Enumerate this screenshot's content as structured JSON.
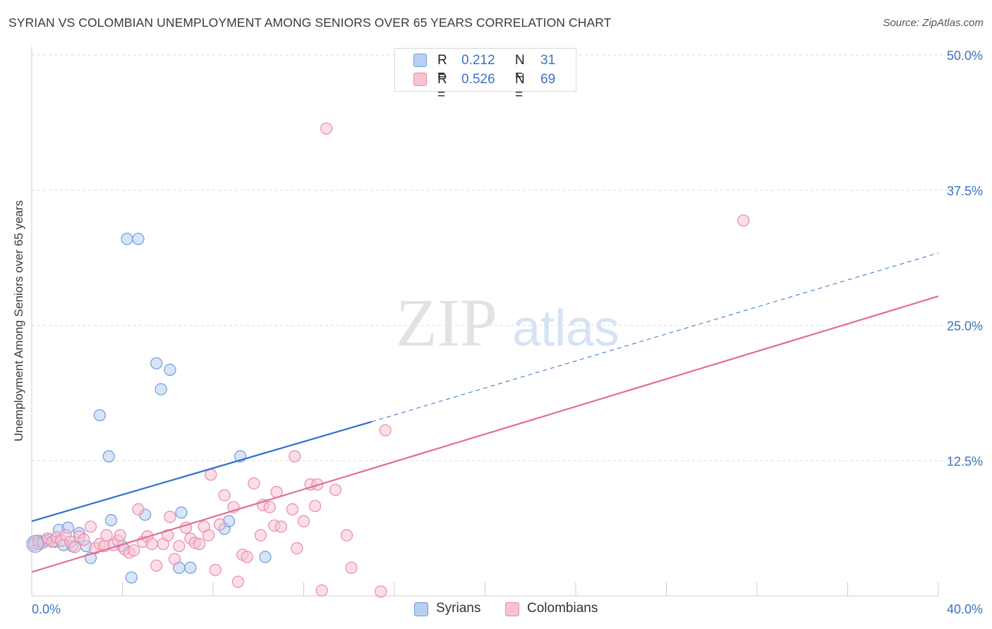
{
  "header": {
    "title": "SYRIAN VS COLOMBIAN UNEMPLOYMENT AMONG SENIORS OVER 65 YEARS CORRELATION CHART",
    "source": "Source: ZipAtlas.com"
  },
  "watermark": {
    "zip": "ZIP",
    "atlas": "atlas"
  },
  "legend_top": {
    "rows": [
      {
        "r_label": "R =",
        "r_value": "0.212",
        "n_label": "N =",
        "n_value": "31"
      },
      {
        "r_label": "R =",
        "r_value": "0.526",
        "n_label": "N =",
        "n_value": "69"
      }
    ]
  },
  "legend_bottom": {
    "syrians": "Syrians",
    "colombians": "Colombians"
  },
  "colors": {
    "syrian_fill": "#b8d0f0",
    "syrian_stroke": "#6d9be0",
    "syrian_line": "#2f6fce",
    "colombian_fill": "#f8c3d3",
    "colombian_stroke": "#ea8aaa",
    "colombian_line": "#e26c98",
    "grid": "#dddddd",
    "tick_text": "#3d72c4"
  },
  "chart_data": {
    "type": "scatter",
    "title": "SYRIAN VS COLOMBIAN UNEMPLOYMENT AMONG SENIORS OVER 65 YEARS CORRELATION CHART",
    "xlabel": "",
    "ylabel": "Unemployment Among Seniors over 65 years",
    "xlim": [
      0,
      40
    ],
    "ylim": [
      0,
      50
    ],
    "x_tick_labels": [
      "0.0%",
      "40.0%"
    ],
    "y_ticks": [
      12.5,
      25.0,
      37.5,
      50.0
    ],
    "y_tick_labels": [
      "12.5%",
      "25.0%",
      "37.5%",
      "50.0%"
    ],
    "grid": true,
    "legend_position": "top-center",
    "series": [
      {
        "name": "Syrians",
        "r": 0.212,
        "n": 31,
        "trend": {
          "x0": 0,
          "y0": 6.9,
          "x1": 15.0,
          "y1": 16.1,
          "dashed_to_x": 40,
          "dashed_to_y": 31.7
        },
        "points": [
          [
            0.1,
            4.9
          ],
          [
            0.4,
            5.0
          ],
          [
            0.6,
            5.1
          ],
          [
            0.8,
            5.2
          ],
          [
            1.0,
            5.0
          ],
          [
            1.2,
            6.1
          ],
          [
            1.4,
            4.7
          ],
          [
            1.6,
            6.3
          ],
          [
            1.8,
            4.6
          ],
          [
            2.1,
            5.8
          ],
          [
            2.4,
            4.6
          ],
          [
            2.6,
            3.5
          ],
          [
            3.0,
            16.7
          ],
          [
            3.4,
            12.9
          ],
          [
            3.5,
            7.0
          ],
          [
            4.0,
            4.6
          ],
          [
            4.2,
            33.0
          ],
          [
            4.4,
            1.7
          ],
          [
            4.7,
            33.0
          ],
          [
            5.0,
            7.5
          ],
          [
            5.5,
            21.5
          ],
          [
            5.7,
            19.1
          ],
          [
            6.1,
            20.9
          ],
          [
            6.5,
            2.6
          ],
          [
            6.6,
            7.7
          ],
          [
            7.0,
            2.6
          ],
          [
            8.5,
            6.2
          ],
          [
            8.7,
            6.9
          ],
          [
            9.2,
            12.9
          ],
          [
            10.3,
            3.6
          ],
          [
            0.3,
            4.8
          ]
        ]
      },
      {
        "name": "Colombians",
        "r": 0.526,
        "n": 69,
        "trend": {
          "x0": 0,
          "y0": 2.2,
          "x1": 40,
          "y1": 27.7
        },
        "points": [
          [
            0.1,
            4.7
          ],
          [
            0.3,
            5.1
          ],
          [
            0.5,
            4.9
          ],
          [
            0.7,
            5.3
          ],
          [
            0.9,
            5.0
          ],
          [
            1.1,
            5.4
          ],
          [
            1.3,
            5.1
          ],
          [
            1.5,
            5.6
          ],
          [
            1.7,
            5.0
          ],
          [
            1.9,
            4.5
          ],
          [
            2.1,
            5.5
          ],
          [
            2.3,
            5.2
          ],
          [
            2.6,
            6.4
          ],
          [
            2.8,
            4.4
          ],
          [
            3.0,
            4.8
          ],
          [
            3.2,
            4.6
          ],
          [
            3.3,
            5.6
          ],
          [
            3.6,
            4.7
          ],
          [
            3.8,
            5.1
          ],
          [
            3.9,
            5.6
          ],
          [
            4.1,
            4.3
          ],
          [
            4.3,
            4.0
          ],
          [
            4.5,
            4.2
          ],
          [
            4.7,
            8.0
          ],
          [
            4.9,
            5.0
          ],
          [
            5.1,
            5.5
          ],
          [
            5.3,
            4.8
          ],
          [
            5.5,
            2.8
          ],
          [
            5.8,
            4.8
          ],
          [
            6.0,
            5.6
          ],
          [
            6.1,
            7.3
          ],
          [
            6.3,
            3.4
          ],
          [
            6.5,
            4.6
          ],
          [
            6.8,
            6.3
          ],
          [
            7.0,
            5.3
          ],
          [
            7.2,
            4.9
          ],
          [
            7.4,
            4.8
          ],
          [
            7.6,
            6.4
          ],
          [
            7.8,
            5.6
          ],
          [
            7.9,
            11.2
          ],
          [
            8.1,
            2.4
          ],
          [
            8.3,
            6.6
          ],
          [
            8.5,
            9.3
          ],
          [
            8.9,
            8.2
          ],
          [
            9.1,
            1.3
          ],
          [
            9.3,
            3.8
          ],
          [
            9.5,
            3.6
          ],
          [
            9.8,
            10.4
          ],
          [
            10.1,
            5.6
          ],
          [
            10.2,
            8.4
          ],
          [
            10.5,
            8.2
          ],
          [
            10.7,
            6.5
          ],
          [
            10.8,
            9.6
          ],
          [
            11.0,
            6.4
          ],
          [
            11.5,
            8.0
          ],
          [
            11.6,
            12.9
          ],
          [
            11.7,
            4.4
          ],
          [
            12.0,
            6.9
          ],
          [
            12.3,
            10.3
          ],
          [
            12.5,
            8.3
          ],
          [
            12.8,
            0.5
          ],
          [
            13.0,
            43.2
          ],
          [
            13.4,
            9.8
          ],
          [
            13.9,
            5.6
          ],
          [
            14.1,
            2.6
          ],
          [
            15.4,
            0.4
          ],
          [
            15.6,
            15.3
          ],
          [
            31.4,
            34.7
          ],
          [
            12.6,
            10.3
          ]
        ]
      }
    ]
  }
}
